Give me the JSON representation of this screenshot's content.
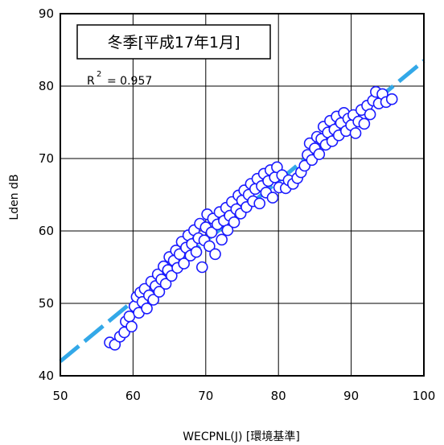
{
  "chart_data": {
    "type": "scatter",
    "title": "冬季[平成17年1月]",
    "r2_label": "R",
    "r2_sup": "2",
    "r2_value": "= 0.957",
    "xlabel": "WECPNL(J) [環境基準]",
    "ylabel": "Lden dB",
    "xlim": [
      50,
      100
    ],
    "ylim": [
      40,
      90
    ],
    "xticks": [
      50,
      60,
      70,
      80,
      90,
      100
    ],
    "yticks": [
      40,
      50,
      60,
      70,
      80,
      90
    ],
    "grid": true,
    "trendline": {
      "x": [
        50,
        100
      ],
      "y": [
        42.0,
        83.5
      ],
      "style": "dashed"
    },
    "marker_color": "#1a1aff",
    "trend_color": "#33a8e8",
    "points": [
      [
        56.8,
        44.6
      ],
      [
        57.5,
        44.3
      ],
      [
        58.2,
        45.4
      ],
      [
        58.8,
        46.0
      ],
      [
        59.0,
        47.5
      ],
      [
        59.5,
        48.2
      ],
      [
        59.8,
        46.8
      ],
      [
        60.2,
        49.6
      ],
      [
        60.5,
        50.9
      ],
      [
        60.8,
        48.7
      ],
      [
        61.0,
        51.5
      ],
      [
        61.3,
        50.2
      ],
      [
        61.6,
        52.0
      ],
      [
        61.9,
        49.3
      ],
      [
        62.2,
        51.1
      ],
      [
        62.5,
        53.0
      ],
      [
        62.8,
        50.5
      ],
      [
        63.1,
        52.4
      ],
      [
        63.4,
        54.0
      ],
      [
        63.6,
        51.6
      ],
      [
        63.9,
        53.3
      ],
      [
        64.2,
        55.1
      ],
      [
        64.5,
        52.7
      ],
      [
        64.8,
        54.6
      ],
      [
        65.0,
        56.4
      ],
      [
        65.3,
        53.8
      ],
      [
        65.6,
        55.9
      ],
      [
        65.9,
        57.3
      ],
      [
        66.1,
        54.9
      ],
      [
        66.4,
        56.8
      ],
      [
        66.7,
        58.5
      ],
      [
        67.0,
        55.5
      ],
      [
        67.3,
        57.7
      ],
      [
        67.6,
        59.4
      ],
      [
        67.9,
        56.6
      ],
      [
        68.1,
        58.2
      ],
      [
        68.4,
        60.1
      ],
      [
        68.7,
        57.1
      ],
      [
        69.0,
        59.0
      ],
      [
        69.2,
        61.0
      ],
      [
        69.5,
        55.0
      ],
      [
        69.8,
        58.7
      ],
      [
        70.0,
        60.5
      ],
      [
        70.2,
        62.3
      ],
      [
        70.5,
        57.9
      ],
      [
        70.8,
        59.8
      ],
      [
        71.0,
        61.7
      ],
      [
        71.3,
        56.8
      ],
      [
        71.6,
        60.9
      ],
      [
        71.9,
        62.6
      ],
      [
        72.2,
        58.8
      ],
      [
        72.5,
        61.4
      ],
      [
        72.8,
        63.2
      ],
      [
        73.0,
        60.1
      ],
      [
        73.3,
        62.1
      ],
      [
        73.6,
        64.0
      ],
      [
        73.9,
        61.2
      ],
      [
        74.2,
        63.0
      ],
      [
        74.5,
        64.9
      ],
      [
        74.8,
        62.4
      ],
      [
        75.0,
        64.2
      ],
      [
        75.3,
        65.6
      ],
      [
        75.6,
        63.3
      ],
      [
        75.9,
        65.0
      ],
      [
        76.2,
        66.5
      ],
      [
        76.5,
        64.1
      ],
      [
        76.8,
        65.8
      ],
      [
        77.1,
        67.2
      ],
      [
        77.4,
        63.8
      ],
      [
        77.7,
        66.2
      ],
      [
        78.0,
        67.9
      ],
      [
        78.3,
        65.3
      ],
      [
        78.6,
        66.9
      ],
      [
        78.9,
        68.4
      ],
      [
        79.2,
        64.6
      ],
      [
        79.5,
        67.4
      ],
      [
        79.8,
        68.8
      ],
      [
        80.1,
        66.0
      ],
      [
        80.5,
        67.7
      ],
      [
        81.0,
        65.9
      ],
      [
        81.4,
        67.0
      ],
      [
        82.0,
        66.5
      ],
      [
        82.6,
        67.3
      ],
      [
        83.1,
        68.1
      ],
      [
        83.6,
        69.0
      ],
      [
        84.0,
        70.5
      ],
      [
        84.3,
        72.1
      ],
      [
        84.6,
        69.8
      ],
      [
        85.0,
        71.4
      ],
      [
        85.3,
        73.0
      ],
      [
        85.6,
        70.6
      ],
      [
        85.9,
        72.7
      ],
      [
        86.2,
        74.4
      ],
      [
        86.5,
        71.9
      ],
      [
        86.8,
        73.6
      ],
      [
        87.1,
        75.2
      ],
      [
        87.4,
        72.4
      ],
      [
        87.7,
        74.0
      ],
      [
        88.0,
        75.8
      ],
      [
        88.3,
        73.2
      ],
      [
        88.6,
        74.9
      ],
      [
        89.0,
        76.3
      ],
      [
        89.3,
        73.8
      ],
      [
        89.6,
        75.5
      ],
      [
        90.0,
        74.6
      ],
      [
        90.3,
        76.0
      ],
      [
        90.6,
        73.5
      ],
      [
        91.0,
        75.1
      ],
      [
        91.4,
        76.7
      ],
      [
        91.8,
        74.8
      ],
      [
        92.2,
        77.3
      ],
      [
        92.6,
        76.1
      ],
      [
        93.0,
        78.0
      ],
      [
        93.4,
        79.2
      ],
      [
        93.8,
        77.6
      ],
      [
        94.3,
        78.9
      ],
      [
        94.8,
        77.8
      ],
      [
        95.6,
        78.2
      ]
    ]
  }
}
